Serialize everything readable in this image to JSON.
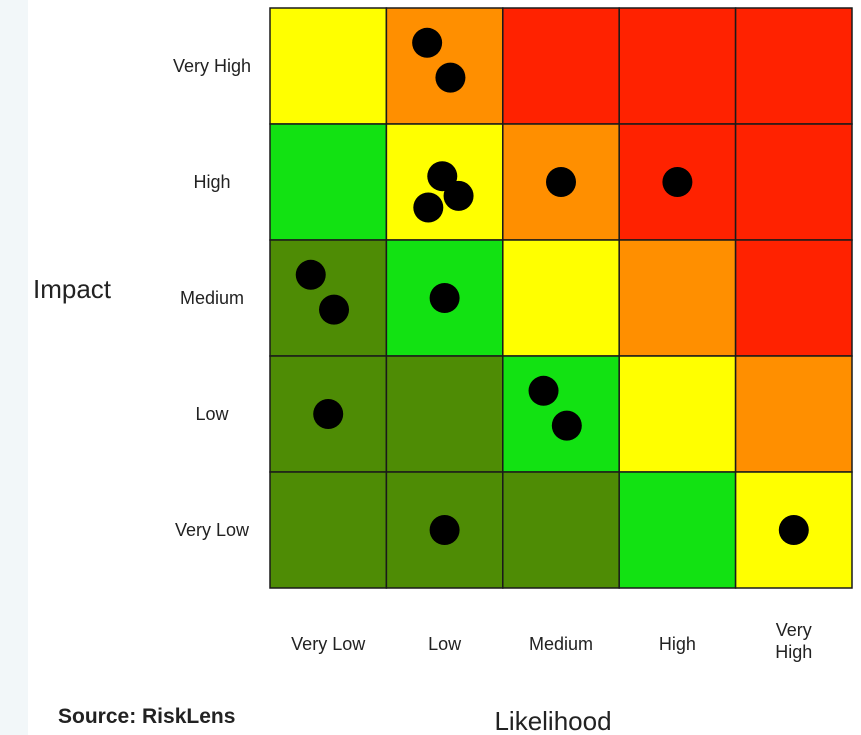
{
  "chart_data": {
    "type": "heatmap",
    "title": "",
    "xlabel": "Likelihood",
    "ylabel": "Impact",
    "x_categories": [
      "Very Low",
      "Low",
      "Medium",
      "High",
      "Very High"
    ],
    "y_categories": [
      "Very High",
      "High",
      "Medium",
      "Low",
      "Very Low"
    ],
    "colors": {
      "dark_green": "#4e8c05",
      "green": "#12e212",
      "yellow": "#ffff00",
      "orange": "#ff8f00",
      "red": "#ff2200",
      "border": "#1a1a1a",
      "dot": "#000000"
    },
    "cells": [
      [
        "yellow",
        "orange",
        "red",
        "red",
        "red"
      ],
      [
        "green",
        "yellow",
        "orange",
        "red",
        "red"
      ],
      [
        "dark_green",
        "green",
        "yellow",
        "orange",
        "red"
      ],
      [
        "dark_green",
        "dark_green",
        "green",
        "yellow",
        "orange"
      ],
      [
        "dark_green",
        "dark_green",
        "dark_green",
        "green",
        "yellow"
      ]
    ],
    "risk_counts": [
      [
        0,
        2,
        0,
        0,
        0
      ],
      [
        0,
        3,
        1,
        1,
        0
      ],
      [
        2,
        1,
        0,
        0,
        0
      ],
      [
        1,
        0,
        2,
        0,
        0
      ],
      [
        0,
        1,
        0,
        0,
        1
      ]
    ]
  },
  "source_label": "Source: RiskLens"
}
